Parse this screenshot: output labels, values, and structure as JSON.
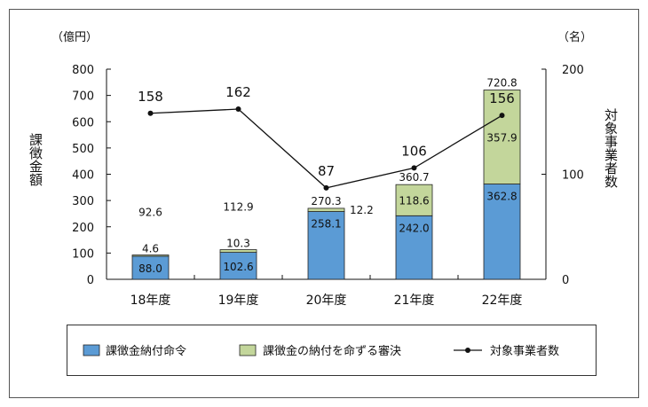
{
  "chart_data": {
    "type": "bar",
    "categories": [
      "18年度",
      "19年度",
      "20年度",
      "21年度",
      "22年度"
    ],
    "series": [
      {
        "name": "課徴金納付命令",
        "kind": "stacked-bar",
        "axis": "left",
        "color": "#5b9bd5",
        "values": [
          88.0,
          102.6,
          258.1,
          242.0,
          362.8
        ],
        "labels": [
          "88.0",
          "102.6",
          "258.1",
          "242.0",
          "362.8"
        ]
      },
      {
        "name": "課徴金の納付を命ずる審決",
        "kind": "stacked-bar",
        "axis": "left",
        "color": "#c3d69b",
        "values": [
          4.6,
          10.3,
          12.2,
          118.6,
          357.9
        ],
        "labels": [
          "4.6",
          "10.3",
          "12.2",
          "118.6",
          "357.9"
        ]
      },
      {
        "name": "対象事業者数",
        "kind": "line",
        "axis": "right",
        "color": "#111111",
        "values": [
          158,
          162,
          87,
          106,
          156
        ],
        "labels": [
          "158",
          "162",
          "87",
          "106",
          "156"
        ]
      }
    ],
    "totals": [
      92.6,
      112.9,
      270.3,
      360.7,
      720.8
    ],
    "total_labels": [
      "92.6",
      "112.9",
      "270.3",
      "360.7",
      "720.8"
    ],
    "y_left": {
      "label": "課徴金額",
      "unit": "（億円）",
      "min": 0,
      "max": 800,
      "step": 100,
      "ticks": [
        "0",
        "100",
        "200",
        "300",
        "400",
        "500",
        "600",
        "700",
        "800"
      ]
    },
    "y_right": {
      "label": "対象事業者数",
      "unit": "（名）",
      "min": 0,
      "max": 200,
      "step": 100,
      "ticks": [
        "0",
        "100",
        "200"
      ]
    },
    "legend_position": "bottom",
    "grid": false
  }
}
